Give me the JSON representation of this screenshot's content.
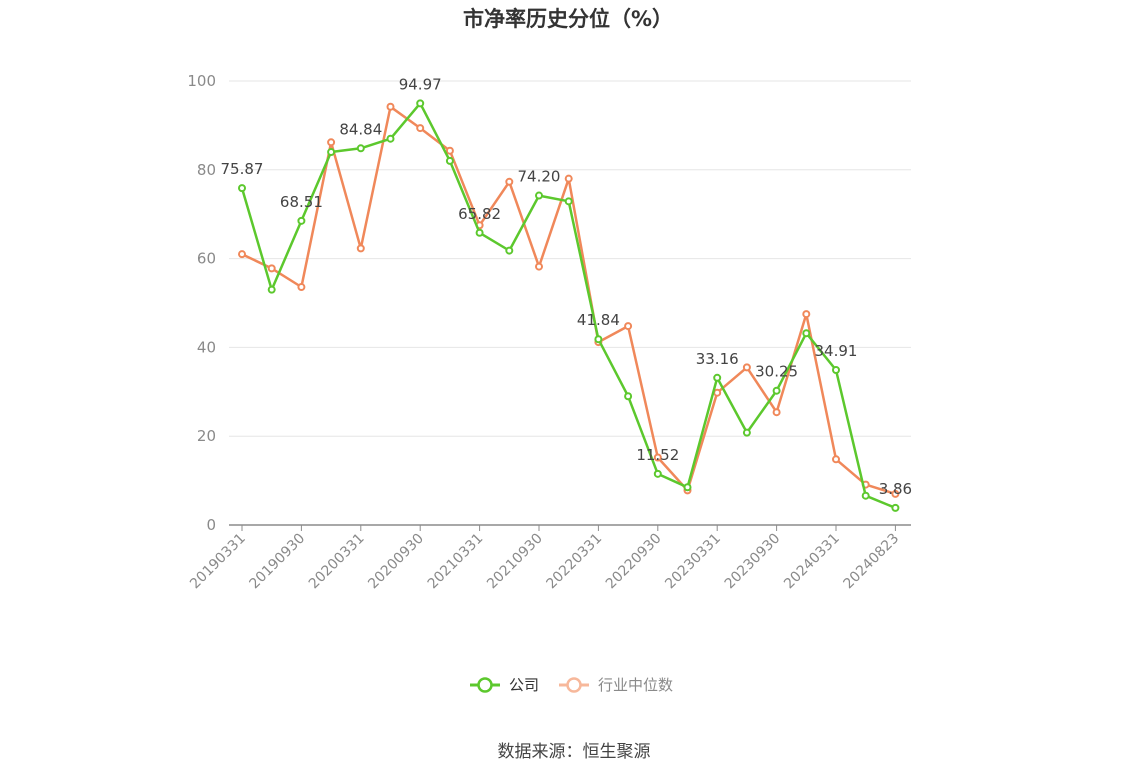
{
  "chart_data": {
    "type": "line",
    "title": "市净率历史分位（%）",
    "xlabel": "",
    "ylabel": "",
    "ylim": [
      0,
      100
    ],
    "yticks": [
      0,
      20,
      40,
      60,
      80,
      100
    ],
    "x": [
      "20190331",
      "20190630",
      "20190930",
      "20191231",
      "20200331",
      "20200630",
      "20200930",
      "20201231",
      "20210331",
      "20210630",
      "20210930",
      "20211231",
      "20220331",
      "20220630",
      "20220930",
      "20221231",
      "20230331",
      "20230630",
      "20230930",
      "20231231",
      "20240331",
      "20240630",
      "20240823"
    ],
    "x_tick_labels": [
      "20190331",
      "20190930",
      "20200331",
      "20200930",
      "20210331",
      "20210930",
      "20220331",
      "20220930",
      "20230331",
      "20230930",
      "20240331",
      "20240823"
    ],
    "x_tick_indices": [
      0,
      2,
      4,
      6,
      8,
      10,
      12,
      14,
      16,
      18,
      20,
      22
    ],
    "grid": true,
    "legend_position": "bottom-center",
    "series": [
      {
        "name": "公司",
        "color": "#5cc82d",
        "values": [
          75.87,
          53.0,
          68.51,
          84.0,
          84.84,
          87.0,
          94.97,
          82.0,
          65.82,
          61.8,
          74.2,
          72.9,
          41.84,
          29.0,
          11.52,
          8.5,
          33.16,
          20.8,
          30.25,
          43.2,
          34.91,
          6.6,
          3.86
        ],
        "labels": {
          "0": "75.87",
          "2": "68.51",
          "4": "84.84",
          "6": "94.97",
          "8": "65.82",
          "10": "74.20",
          "12": "41.84",
          "14": "11.52",
          "16": "33.16",
          "18": "30.25",
          "20": "34.91",
          "22": "3.86"
        }
      },
      {
        "name": "行业中位数",
        "color": "#f0885a",
        "values": [
          61.0,
          57.8,
          53.6,
          86.2,
          62.3,
          94.2,
          89.4,
          84.3,
          67.5,
          77.3,
          58.2,
          78.0,
          41.2,
          44.8,
          15.2,
          7.8,
          29.8,
          35.5,
          25.4,
          47.5,
          14.8,
          9.1,
          7.0
        ]
      }
    ]
  },
  "legend": {
    "items": [
      {
        "label": "公司",
        "color": "#5cc82d",
        "text_color": "#333333"
      },
      {
        "label": "行业中位数",
        "color": "#f7b89b",
        "text_color": "#8a8a8a"
      }
    ]
  },
  "source": "数据来源：恒生聚源"
}
